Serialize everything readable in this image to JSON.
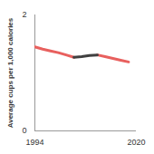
{
  "chart_data": {
    "type": "line",
    "y_label": "Average cups per 1,000 calories",
    "x": [
      1994,
      1996,
      1998,
      2000,
      2002,
      2004,
      2006,
      2008,
      2010,
      2012,
      2014,
      2016,
      2018
    ],
    "series": [
      {
        "color": "#e8605e",
        "values": [
          1.45,
          1.41,
          1.38,
          1.35,
          1.31,
          1.27,
          null,
          null,
          1.31,
          1.28,
          1.25,
          1.22,
          1.19
        ]
      },
      {
        "color": "#404040",
        "values": [
          null,
          null,
          null,
          null,
          null,
          1.27,
          1.28,
          1.3,
          1.31,
          null,
          null,
          null,
          null
        ]
      }
    ],
    "xlim": [
      1994,
      2020
    ],
    "xticks": [
      1994,
      2020
    ],
    "ylim": [
      0,
      2
    ],
    "yticks": [
      0,
      2
    ],
    "grid": false
  }
}
